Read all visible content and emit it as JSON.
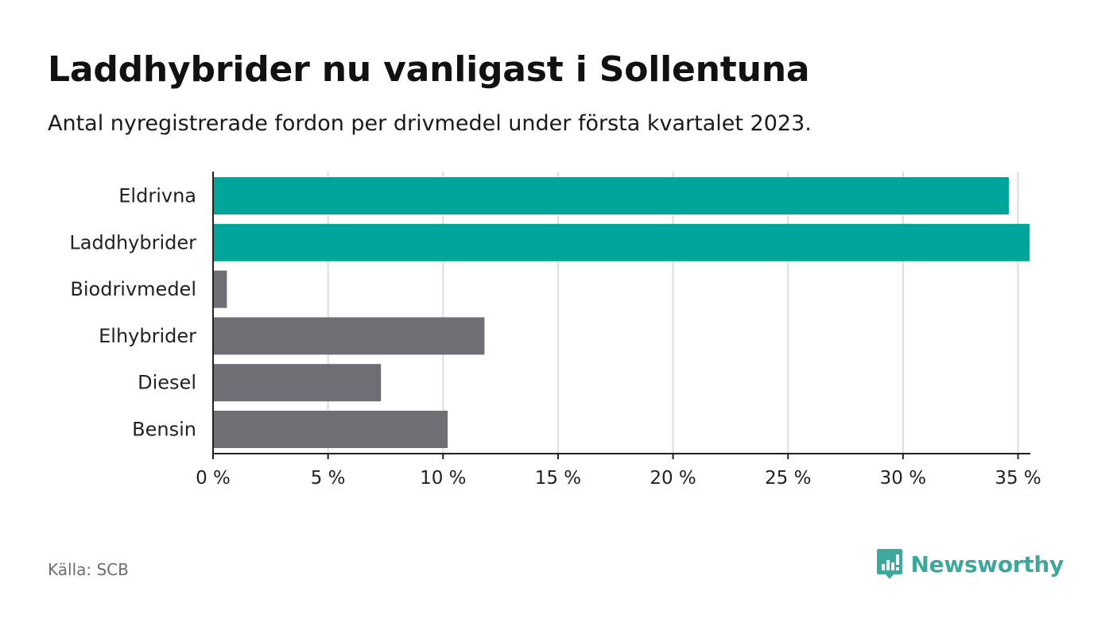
{
  "chart_data": {
    "type": "bar",
    "orientation": "horizontal",
    "title": "Laddhybrider nu vanligast i Sollentuna",
    "subtitle": "Antal nyregistrerade fordon per drivmedel under första kvartalet 2023.",
    "categories": [
      "Eldrivna",
      "Laddhybrider",
      "Biodrivmedel",
      "Elhybrider",
      "Diesel",
      "Bensin"
    ],
    "values": [
      34.6,
      35.5,
      0.6,
      11.8,
      7.3,
      10.2
    ],
    "unit": "%",
    "highlight": [
      true,
      true,
      false,
      false,
      false,
      false
    ],
    "xlim": [
      0,
      35.5
    ],
    "xticks": [
      0,
      5,
      10,
      15,
      20,
      25,
      30,
      35
    ],
    "xtick_labels": [
      "0 %",
      "5 %",
      "10 %",
      "15 %",
      "20 %",
      "25 %",
      "30 %",
      "35 %"
    ],
    "xlabel": "",
    "ylabel": "",
    "grid": "vertical",
    "colors": {
      "highlight": "#00a59a",
      "default": "#6f6e74",
      "grid": "#dddddd",
      "axis": "#222222"
    }
  },
  "footer": {
    "source": "Källa: SCB",
    "brand": "Newsworthy",
    "brand_icon": "newsworthy-logo-icon",
    "brand_color": "#3ea89d"
  }
}
